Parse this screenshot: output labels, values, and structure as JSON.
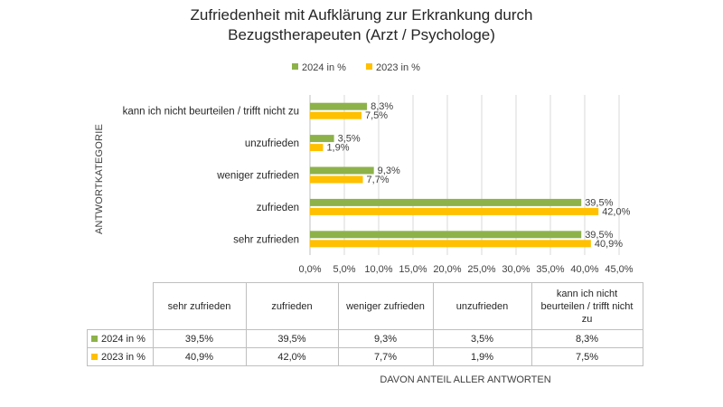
{
  "colors": {
    "s2024": "#8db24a",
    "s2023": "#ffc000",
    "grid": "#d9d9d9"
  },
  "chart_data": {
    "type": "bar",
    "orientation": "horizontal",
    "title_line1": "Zufriedenheit mit Aufklärung zur Erkrankung durch",
    "title_line2": "Bezugstherapeuten (Arzt / Psychologe)",
    "categories": [
      "sehr zufrieden",
      "zufrieden",
      "weniger zufrieden",
      "unzufrieden",
      "kann ich nicht beurteilen / trifft nicht zu"
    ],
    "table_headers": [
      "sehr zufrieden",
      "zufrieden",
      "weniger zufrieden",
      "unzufrieden",
      "kann ich nicht beurteilen / trifft nicht zu"
    ],
    "series": [
      {
        "name": "2024 in %",
        "values": [
          39.5,
          39.5,
          9.3,
          3.5,
          8.3
        ],
        "labels": [
          "39,5%",
          "39,5%",
          "9,3%",
          "3,5%",
          "8,3%"
        ]
      },
      {
        "name": "2023 in %",
        "values": [
          40.9,
          42.0,
          7.7,
          1.9,
          7.5
        ],
        "labels": [
          "40,9%",
          "42,0%",
          "7,7%",
          "1,9%",
          "7,5%"
        ]
      }
    ],
    "xlim": [
      0,
      45
    ],
    "xticks": [
      "0,0%",
      "5,0%",
      "10,0%",
      "15,0%",
      "20,0%",
      "25,0%",
      "30,0%",
      "35,0%",
      "40,0%",
      "45,0%"
    ],
    "ylabel": "ANTWORTKATEGORIE",
    "xlabel": "DAVON ANTEIL ALLER ANTWORTEN",
    "legend_position": "top"
  }
}
